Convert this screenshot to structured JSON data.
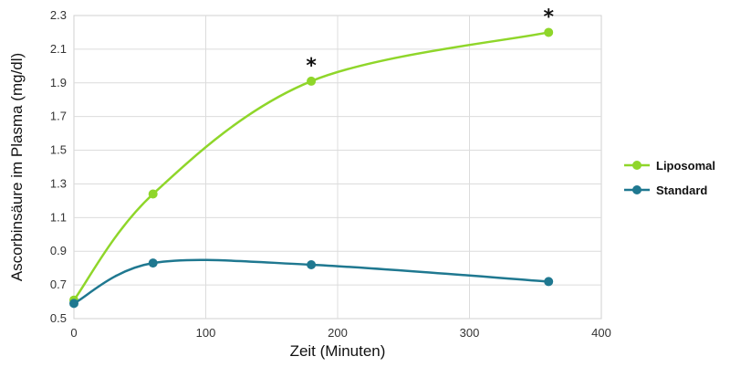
{
  "chart_data": {
    "type": "line",
    "title": "",
    "xlabel": "Zeit (Minuten)",
    "ylabel": "Ascorbinsäure im Plasma (mg/dl)",
    "xlim": [
      0,
      400
    ],
    "ylim": [
      0.5,
      2.3
    ],
    "x_ticks": [
      "0",
      "100",
      "200",
      "300",
      "400"
    ],
    "y_ticks": [
      "0.5",
      "0.7",
      "0.9",
      "1.1",
      "1.3",
      "1.5",
      "1.7",
      "1.9",
      "2.1",
      "2.3"
    ],
    "grid": true,
    "legend_position": "right",
    "series": [
      {
        "name": "Liposomal",
        "color": "#8fd62a",
        "x": [
          0,
          60,
          180,
          360
        ],
        "y": [
          0.61,
          1.24,
          1.91,
          2.2
        ]
      },
      {
        "name": "Standard",
        "color": "#1f7890",
        "x": [
          0,
          60,
          180,
          360
        ],
        "y": [
          0.59,
          0.83,
          0.82,
          0.72
        ]
      }
    ],
    "annotations": [
      {
        "text": "*",
        "x": 180,
        "y": 1.91
      },
      {
        "text": "*",
        "x": 360,
        "y": 2.2
      }
    ]
  }
}
